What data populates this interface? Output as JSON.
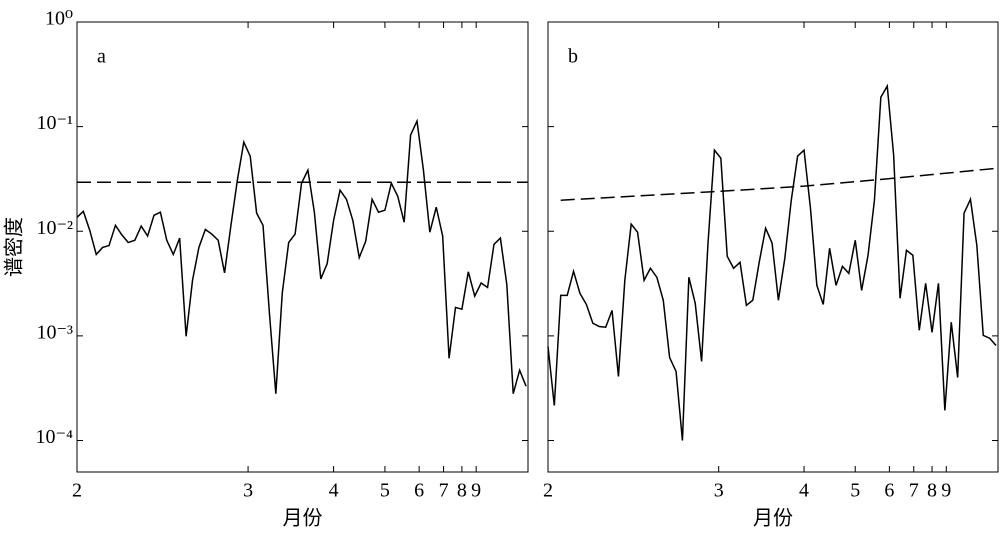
{
  "chart_data": [
    {
      "type": "line",
      "label": "a",
      "xlabel": "月份",
      "ylabel": "谱密度",
      "x_scale": "reciprocal",
      "y_scale": "log",
      "xlim": [
        2,
        16.5
      ],
      "ylim": [
        5e-05,
        1
      ],
      "xticks": [
        2,
        3,
        4,
        5,
        6,
        7,
        8,
        9
      ],
      "yticks": [
        {
          "value": 0.0001,
          "label": "10⁻⁴"
        },
        {
          "value": 0.001,
          "label": "10⁻³"
        },
        {
          "value": 0.01,
          "label": "10⁻²"
        },
        {
          "value": 0.1,
          "label": "10⁻¹"
        },
        {
          "value": 1,
          "label": "10⁰"
        }
      ],
      "series": [
        {
          "color": "#000000",
          "linestyle": "solid",
          "x": [
            2,
            2.025,
            2.051,
            2.078,
            2.105,
            2.133,
            2.162,
            2.192,
            2.222,
            2.254,
            2.286,
            2.319,
            2.353,
            2.388,
            2.424,
            2.462,
            2.5,
            2.54,
            2.581,
            2.623,
            2.667,
            2.712,
            2.759,
            2.807,
            2.857,
            2.909,
            2.963,
            3.019,
            3.077,
            3.137,
            3.2,
            3.265,
            3.333,
            3.404,
            3.478,
            3.556,
            3.636,
            3.721,
            3.81,
            3.902,
            4,
            4.103,
            4.211,
            4.324,
            4.444,
            4.571,
            4.706,
            4.848,
            5,
            5.161,
            5.333,
            5.517,
            5.714,
            5.926,
            6.154,
            6.4,
            6.667,
            6.957,
            7.273,
            7.619,
            8,
            8.421,
            8.889,
            9.412,
            10,
            10.667,
            11.429,
            12.308,
            13.333,
            14.545,
            16
          ],
          "values": [
            0.0136,
            0.0155,
            0.0102,
            0.006,
            0.007,
            0.0073,
            0.0114,
            0.0092,
            0.0078,
            0.0082,
            0.0112,
            0.009,
            0.0142,
            0.0152,
            0.0082,
            0.006,
            0.0086,
            0.00099,
            0.0034,
            0.007,
            0.0104,
            0.0094,
            0.0082,
            0.004,
            0.0114,
            0.0308,
            0.0711,
            0.0522,
            0.0149,
            0.0114,
            0.00164,
            0.00028,
            0.00255,
            0.0078,
            0.0094,
            0.0288,
            0.0384,
            0.0152,
            0.0035,
            0.0049,
            0.0127,
            0.0247,
            0.0202,
            0.0127,
            0.0056,
            0.008,
            0.0202,
            0.0152,
            0.0159,
            0.0288,
            0.0216,
            0.0122,
            0.083,
            0.113,
            0.0384,
            0.0098,
            0.017,
            0.009,
            0.00061,
            0.00187,
            0.0018,
            0.0041,
            0.0024,
            0.0032,
            0.0029,
            0.0075,
            0.0086,
            0.0031,
            0.00028,
            0.00047,
            0.00033
          ]
        },
        {
          "color": "#000000",
          "linestyle": "dashed",
          "x": [
            2,
            16.5
          ],
          "values": [
            0.0294,
            0.0294
          ]
        }
      ]
    },
    {
      "type": "line",
      "label": "b",
      "xlabel": "月份",
      "x_scale": "reciprocal",
      "y_scale": "log",
      "xlim": [
        2,
        16.5
      ],
      "ylim": [
        5e-05,
        1
      ],
      "xticks": [
        2,
        3,
        4,
        5,
        6,
        7,
        8,
        9
      ],
      "yticks": [
        0.0001,
        0.001,
        0.01,
        0.1,
        1
      ],
      "series": [
        {
          "color": "#000000",
          "linestyle": "solid",
          "x": [
            2,
            2.025,
            2.051,
            2.078,
            2.105,
            2.133,
            2.162,
            2.192,
            2.222,
            2.254,
            2.286,
            2.319,
            2.353,
            2.388,
            2.424,
            2.462,
            2.5,
            2.54,
            2.581,
            2.623,
            2.667,
            2.712,
            2.759,
            2.807,
            2.857,
            2.909,
            2.963,
            3.019,
            3.077,
            3.137,
            3.2,
            3.265,
            3.333,
            3.404,
            3.478,
            3.556,
            3.636,
            3.721,
            3.81,
            3.902,
            4,
            4.103,
            4.211,
            4.324,
            4.444,
            4.571,
            4.706,
            4.848,
            5,
            5.161,
            5.333,
            5.517,
            5.714,
            5.926,
            6.154,
            6.4,
            6.667,
            6.957,
            7.273,
            7.619,
            8,
            8.421,
            8.889,
            9.412,
            10,
            10.667,
            11.429,
            12.308,
            13.333,
            14.545,
            16
          ],
          "values": [
            0.00079,
            0.000216,
            0.00244,
            0.00244,
            0.00414,
            0.00255,
            0.002,
            0.00132,
            0.00123,
            0.00121,
            0.00175,
            0.00041,
            0.0034,
            0.0117,
            0.0098,
            0.0034,
            0.00443,
            0.00363,
            0.00219,
            0.00062,
            0.000457,
            0.0001,
            0.00363,
            0.00205,
            0.00057,
            0.0077,
            0.0596,
            0.05,
            0.00577,
            0.00443,
            0.00505,
            0.00196,
            0.00219,
            0.00505,
            0.0107,
            0.0077,
            0.00219,
            0.00552,
            0.0198,
            0.0522,
            0.0596,
            0.0166,
            0.00304,
            0.002,
            0.00688,
            0.00304,
            0.00462,
            0.00396,
            0.0082,
            0.00272,
            0.00589,
            0.0198,
            0.191,
            0.244,
            0.0533,
            0.00229,
            0.00658,
            0.00589,
            0.00113,
            0.00318,
            0.00108,
            0.00318,
            0.000194,
            0.00135,
            0.0004,
            0.0149,
            0.0202,
            0.0073,
            0.00101,
            0.00095,
            0.00081
          ]
        },
        {
          "color": "#000000",
          "linestyle": "dashed",
          "x": [
            2.051,
            3.019,
            4,
            6.154,
            16.5
          ],
          "values": [
            0.0198,
            0.0241,
            0.027,
            0.0321,
            0.0401
          ]
        }
      ]
    }
  ]
}
